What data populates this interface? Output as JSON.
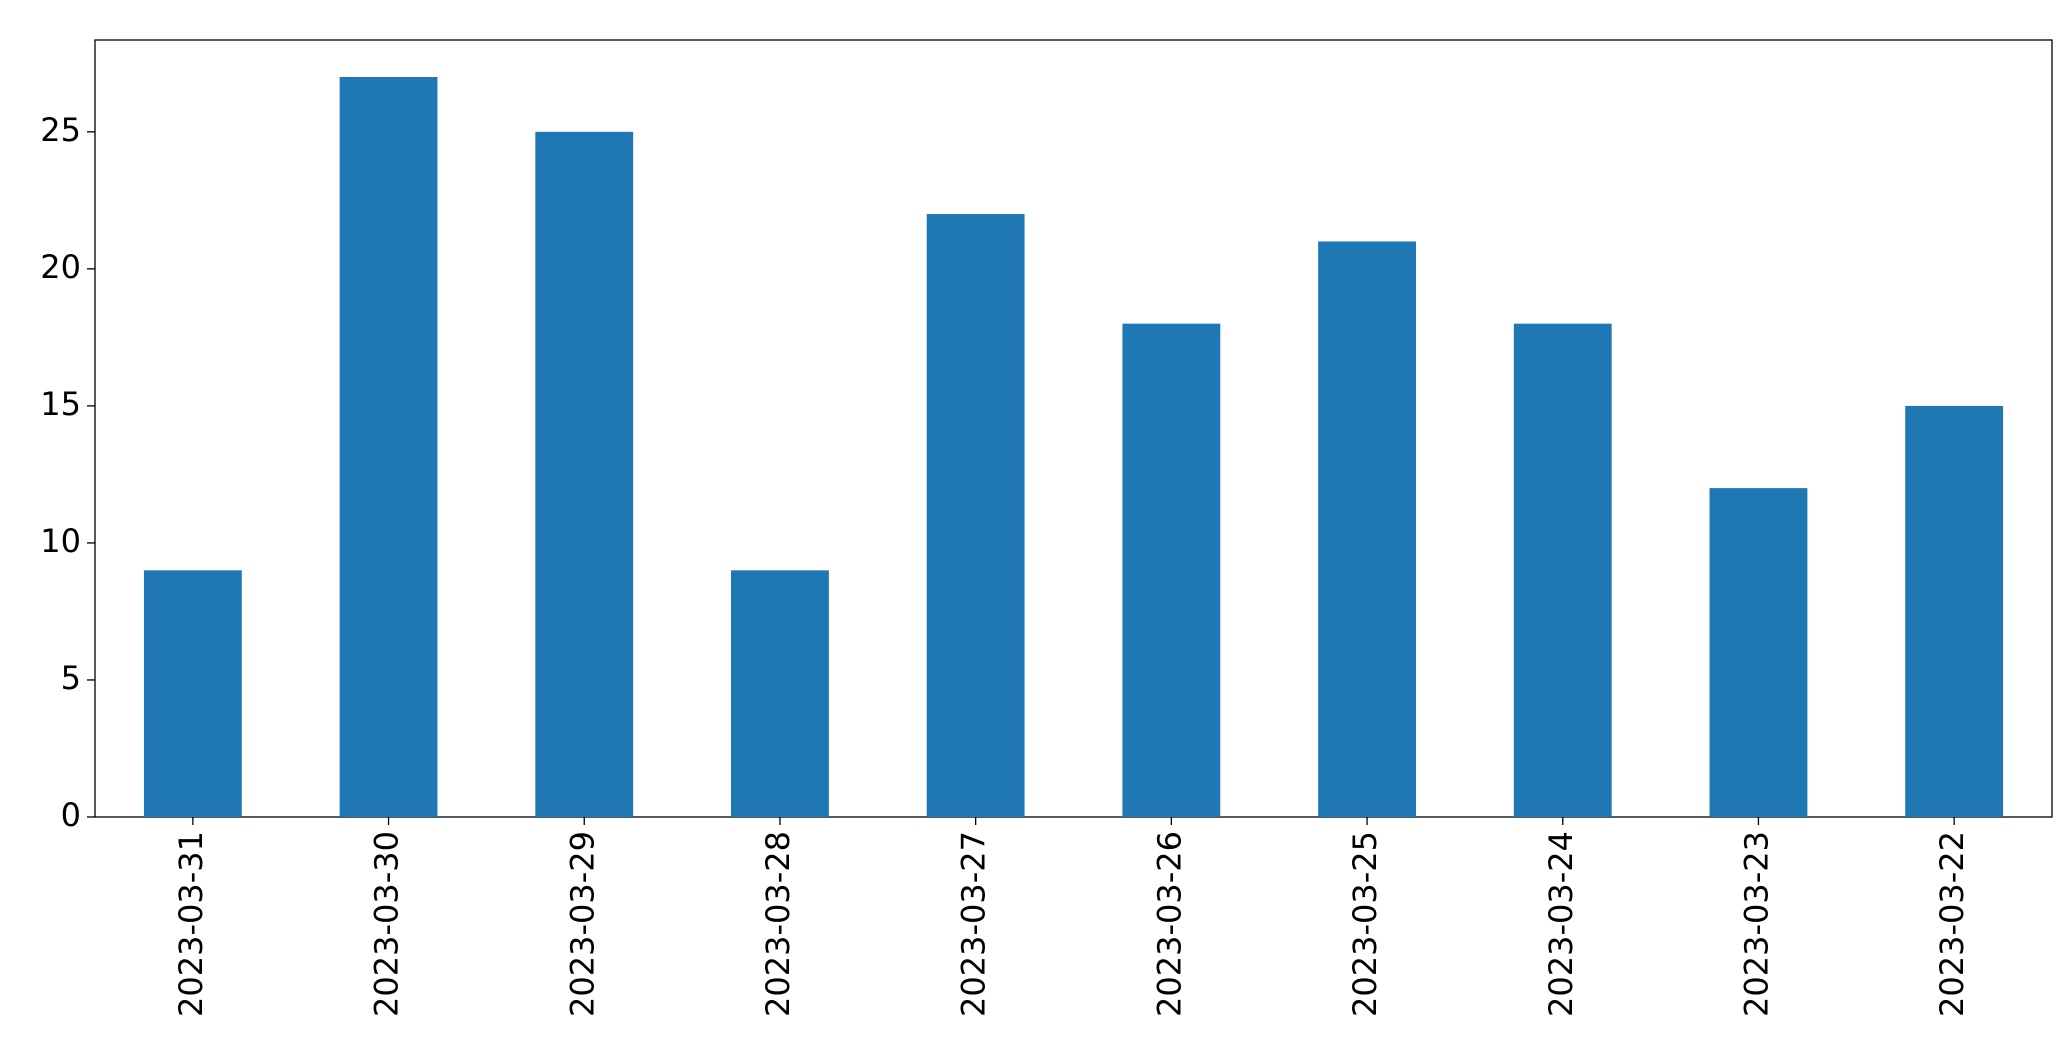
{
  "chart_data": {
    "type": "bar",
    "categories": [
      "2023-03-31",
      "2023-03-30",
      "2023-03-29",
      "2023-03-28",
      "2023-03-27",
      "2023-03-26",
      "2023-03-25",
      "2023-03-24",
      "2023-03-23",
      "2023-03-22"
    ],
    "values": [
      9,
      27,
      25,
      9,
      22,
      18,
      21,
      18,
      12,
      15
    ],
    "color": "#1f77b4",
    "ylim": [
      0,
      28.35
    ],
    "yticks": [
      0,
      5,
      10,
      15,
      20,
      25
    ],
    "grid": false
  }
}
